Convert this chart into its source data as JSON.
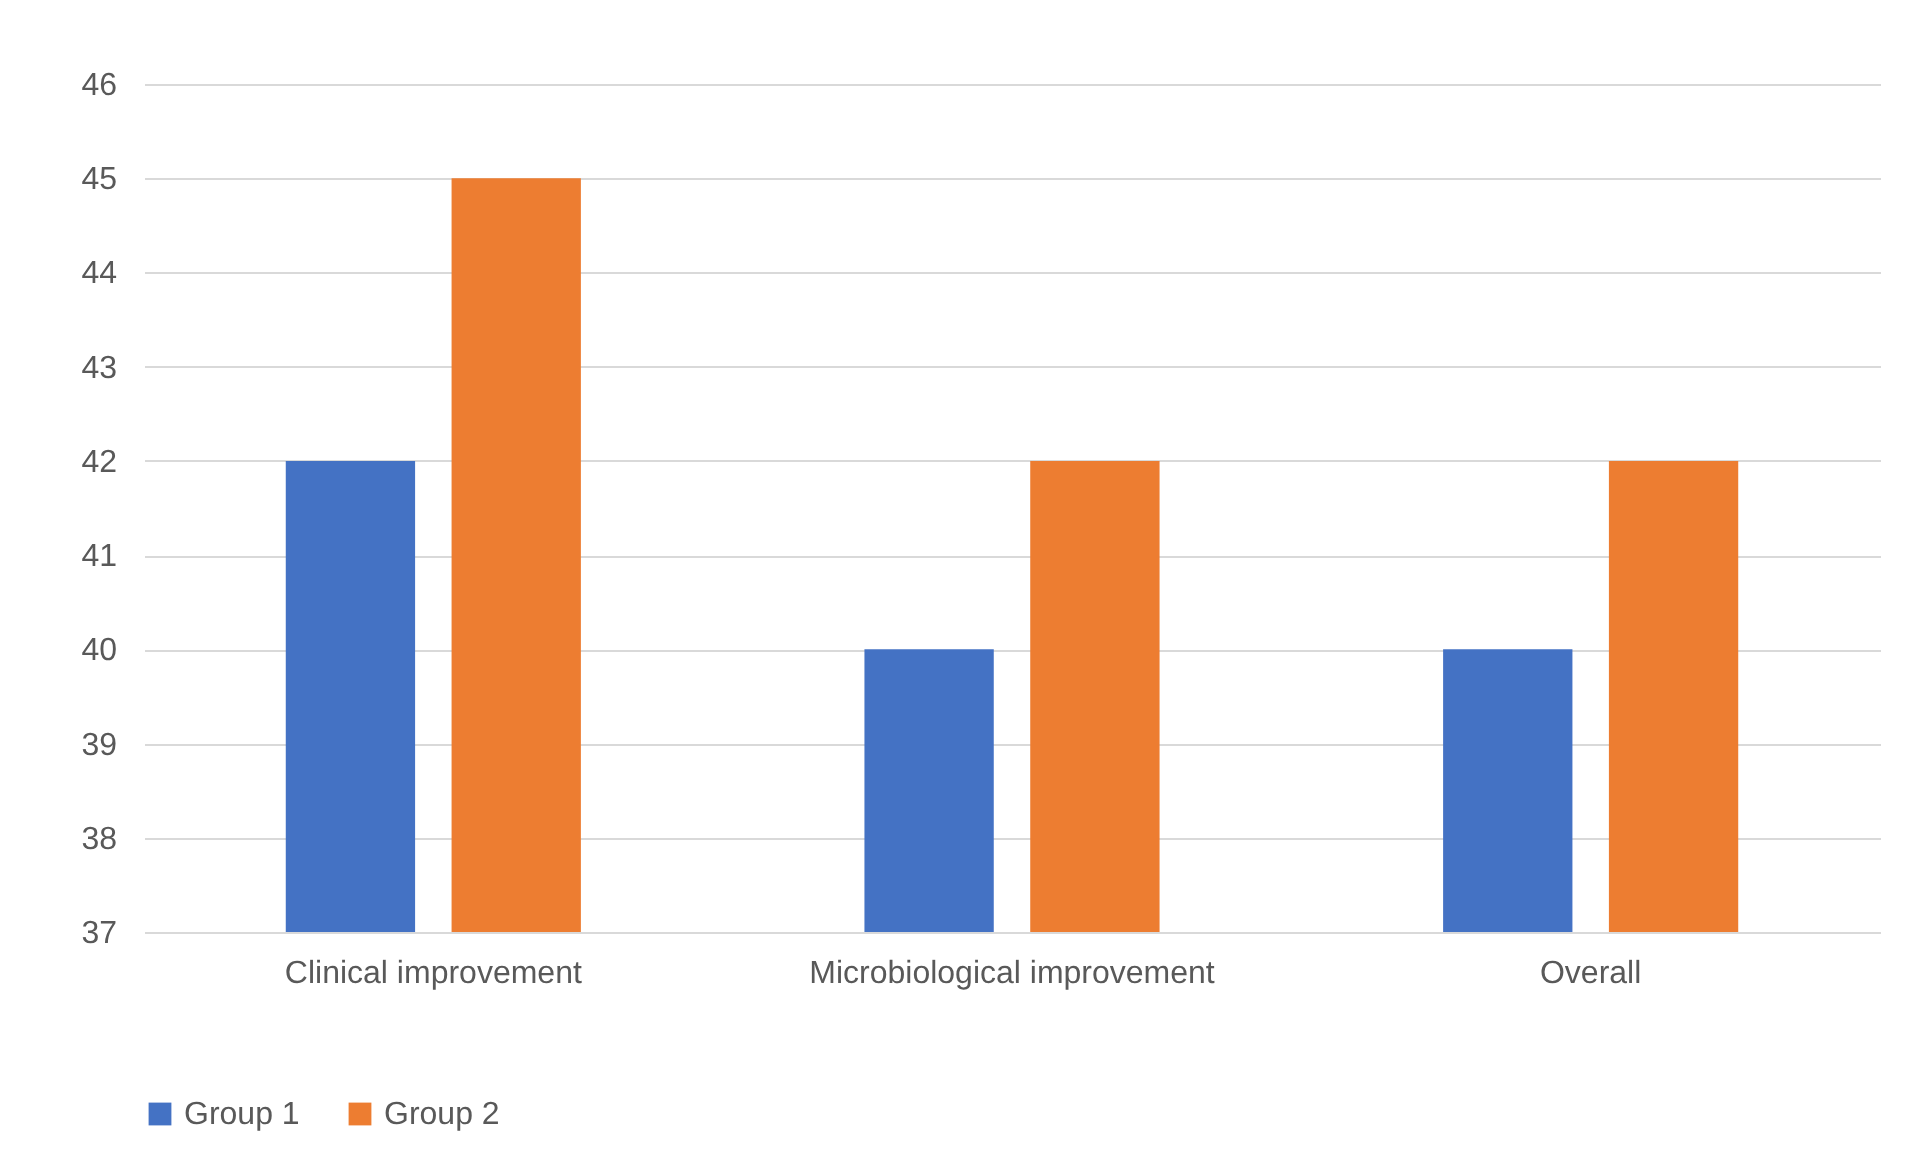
{
  "chart_data": {
    "type": "bar",
    "categories": [
      "Clinical improvement",
      "Microbiological improvement",
      "Overall"
    ],
    "series": [
      {
        "name": "Group 1",
        "color": "#4472c4",
        "values": [
          42,
          40,
          40
        ]
      },
      {
        "name": "Group 2",
        "color": "#ed7d31",
        "values": [
          45,
          42,
          42
        ]
      }
    ],
    "ylim": [
      37,
      46
    ],
    "yticks": [
      37,
      38,
      39,
      40,
      41,
      42,
      43,
      44,
      45,
      46
    ],
    "grid": "y",
    "legend": "bottom"
  }
}
